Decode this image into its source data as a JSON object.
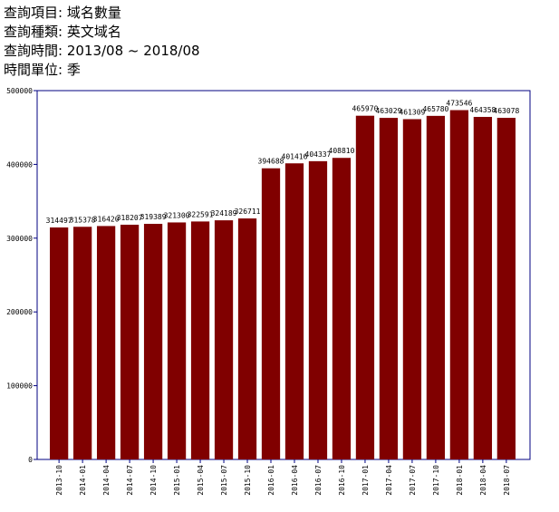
{
  "query": {
    "item": "查詢項目: 域名數量",
    "type": "查詢種類: 英文域名",
    "period": "查詢時間: 2013/08 ~ 2018/08",
    "unit": "時間單位: 季"
  },
  "colors": {
    "bar": "#800000",
    "frame": "#000080",
    "text": "#000000"
  },
  "chart_data": {
    "type": "bar",
    "title": "",
    "xlabel": "",
    "ylabel": "",
    "ylim": [
      0,
      500000
    ],
    "yticks": [
      "0",
      "100000",
      "200000",
      "300000",
      "400000",
      "500000"
    ],
    "grid": false,
    "categories": [
      "2013-10",
      "2014-01",
      "2014-04",
      "2014-07",
      "2014-10",
      "2015-01",
      "2015-04",
      "2015-07",
      "2015-10",
      "2016-01",
      "2016-04",
      "2016-07",
      "2016-10",
      "2017-01",
      "2017-04",
      "2017-07",
      "2017-10",
      "2018-01",
      "2018-04",
      "2018-07"
    ],
    "values": [
      314497,
      315378,
      316420,
      318207,
      319389,
      321300,
      322591,
      324189,
      326711,
      394688,
      401416,
      404337,
      408810,
      465970,
      463029,
      461309,
      465780,
      473546,
      464358,
      463078
    ]
  }
}
